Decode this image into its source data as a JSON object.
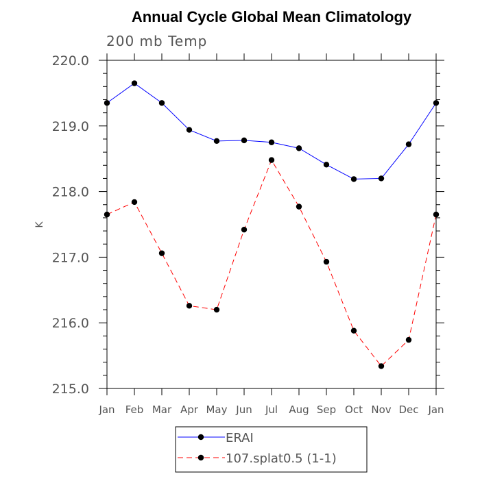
{
  "chart_data": {
    "type": "line",
    "title": "Annual Cycle Global Mean Climatology",
    "subtitle": "200 mb Temp",
    "ylabel": "K",
    "xlabel": "",
    "categories": [
      "Jan",
      "Feb",
      "Mar",
      "Apr",
      "May",
      "Jun",
      "Jul",
      "Aug",
      "Sep",
      "Oct",
      "Nov",
      "Dec",
      "Jan"
    ],
    "ylim": [
      215.0,
      220.0
    ],
    "yticks": [
      "215.0",
      "216.0",
      "217.0",
      "218.0",
      "219.0",
      "220.0"
    ],
    "grid": false,
    "legend_position": "bottom-center",
    "series": [
      {
        "name": "ERAI",
        "color": "#0000ff",
        "style": "solid",
        "marker": "filled-circle",
        "values": [
          219.35,
          219.65,
          219.35,
          218.94,
          218.77,
          218.78,
          218.75,
          218.66,
          218.41,
          218.19,
          218.2,
          218.72,
          219.35
        ]
      },
      {
        "name": "107.splat0.5 (1-1)",
        "color": "#ff0000",
        "style": "dashed",
        "marker": "filled-circle",
        "values": [
          217.65,
          217.84,
          217.06,
          216.26,
          216.2,
          217.42,
          218.48,
          217.77,
          216.93,
          215.88,
          215.34,
          215.74,
          217.65
        ]
      }
    ]
  }
}
